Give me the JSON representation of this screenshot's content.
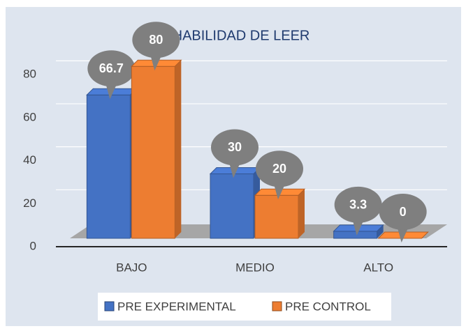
{
  "chart_data": {
    "type": "bar",
    "title": "HABILIDAD DE LEER",
    "categories": [
      "BAJO",
      "MEDIO",
      "ALTO"
    ],
    "series": [
      {
        "name": "PRE EXPERIMENTAL",
        "color": "#4472c4",
        "values": [
          66.7,
          30,
          3.3
        ]
      },
      {
        "name": "PRE CONTROL",
        "color": "#ed7d31",
        "values": [
          80,
          20,
          0
        ]
      }
    ],
    "ylim": [
      0,
      90
    ],
    "yticks": [
      0,
      20,
      40,
      60,
      80
    ],
    "grid": true,
    "legend": "bottom"
  }
}
